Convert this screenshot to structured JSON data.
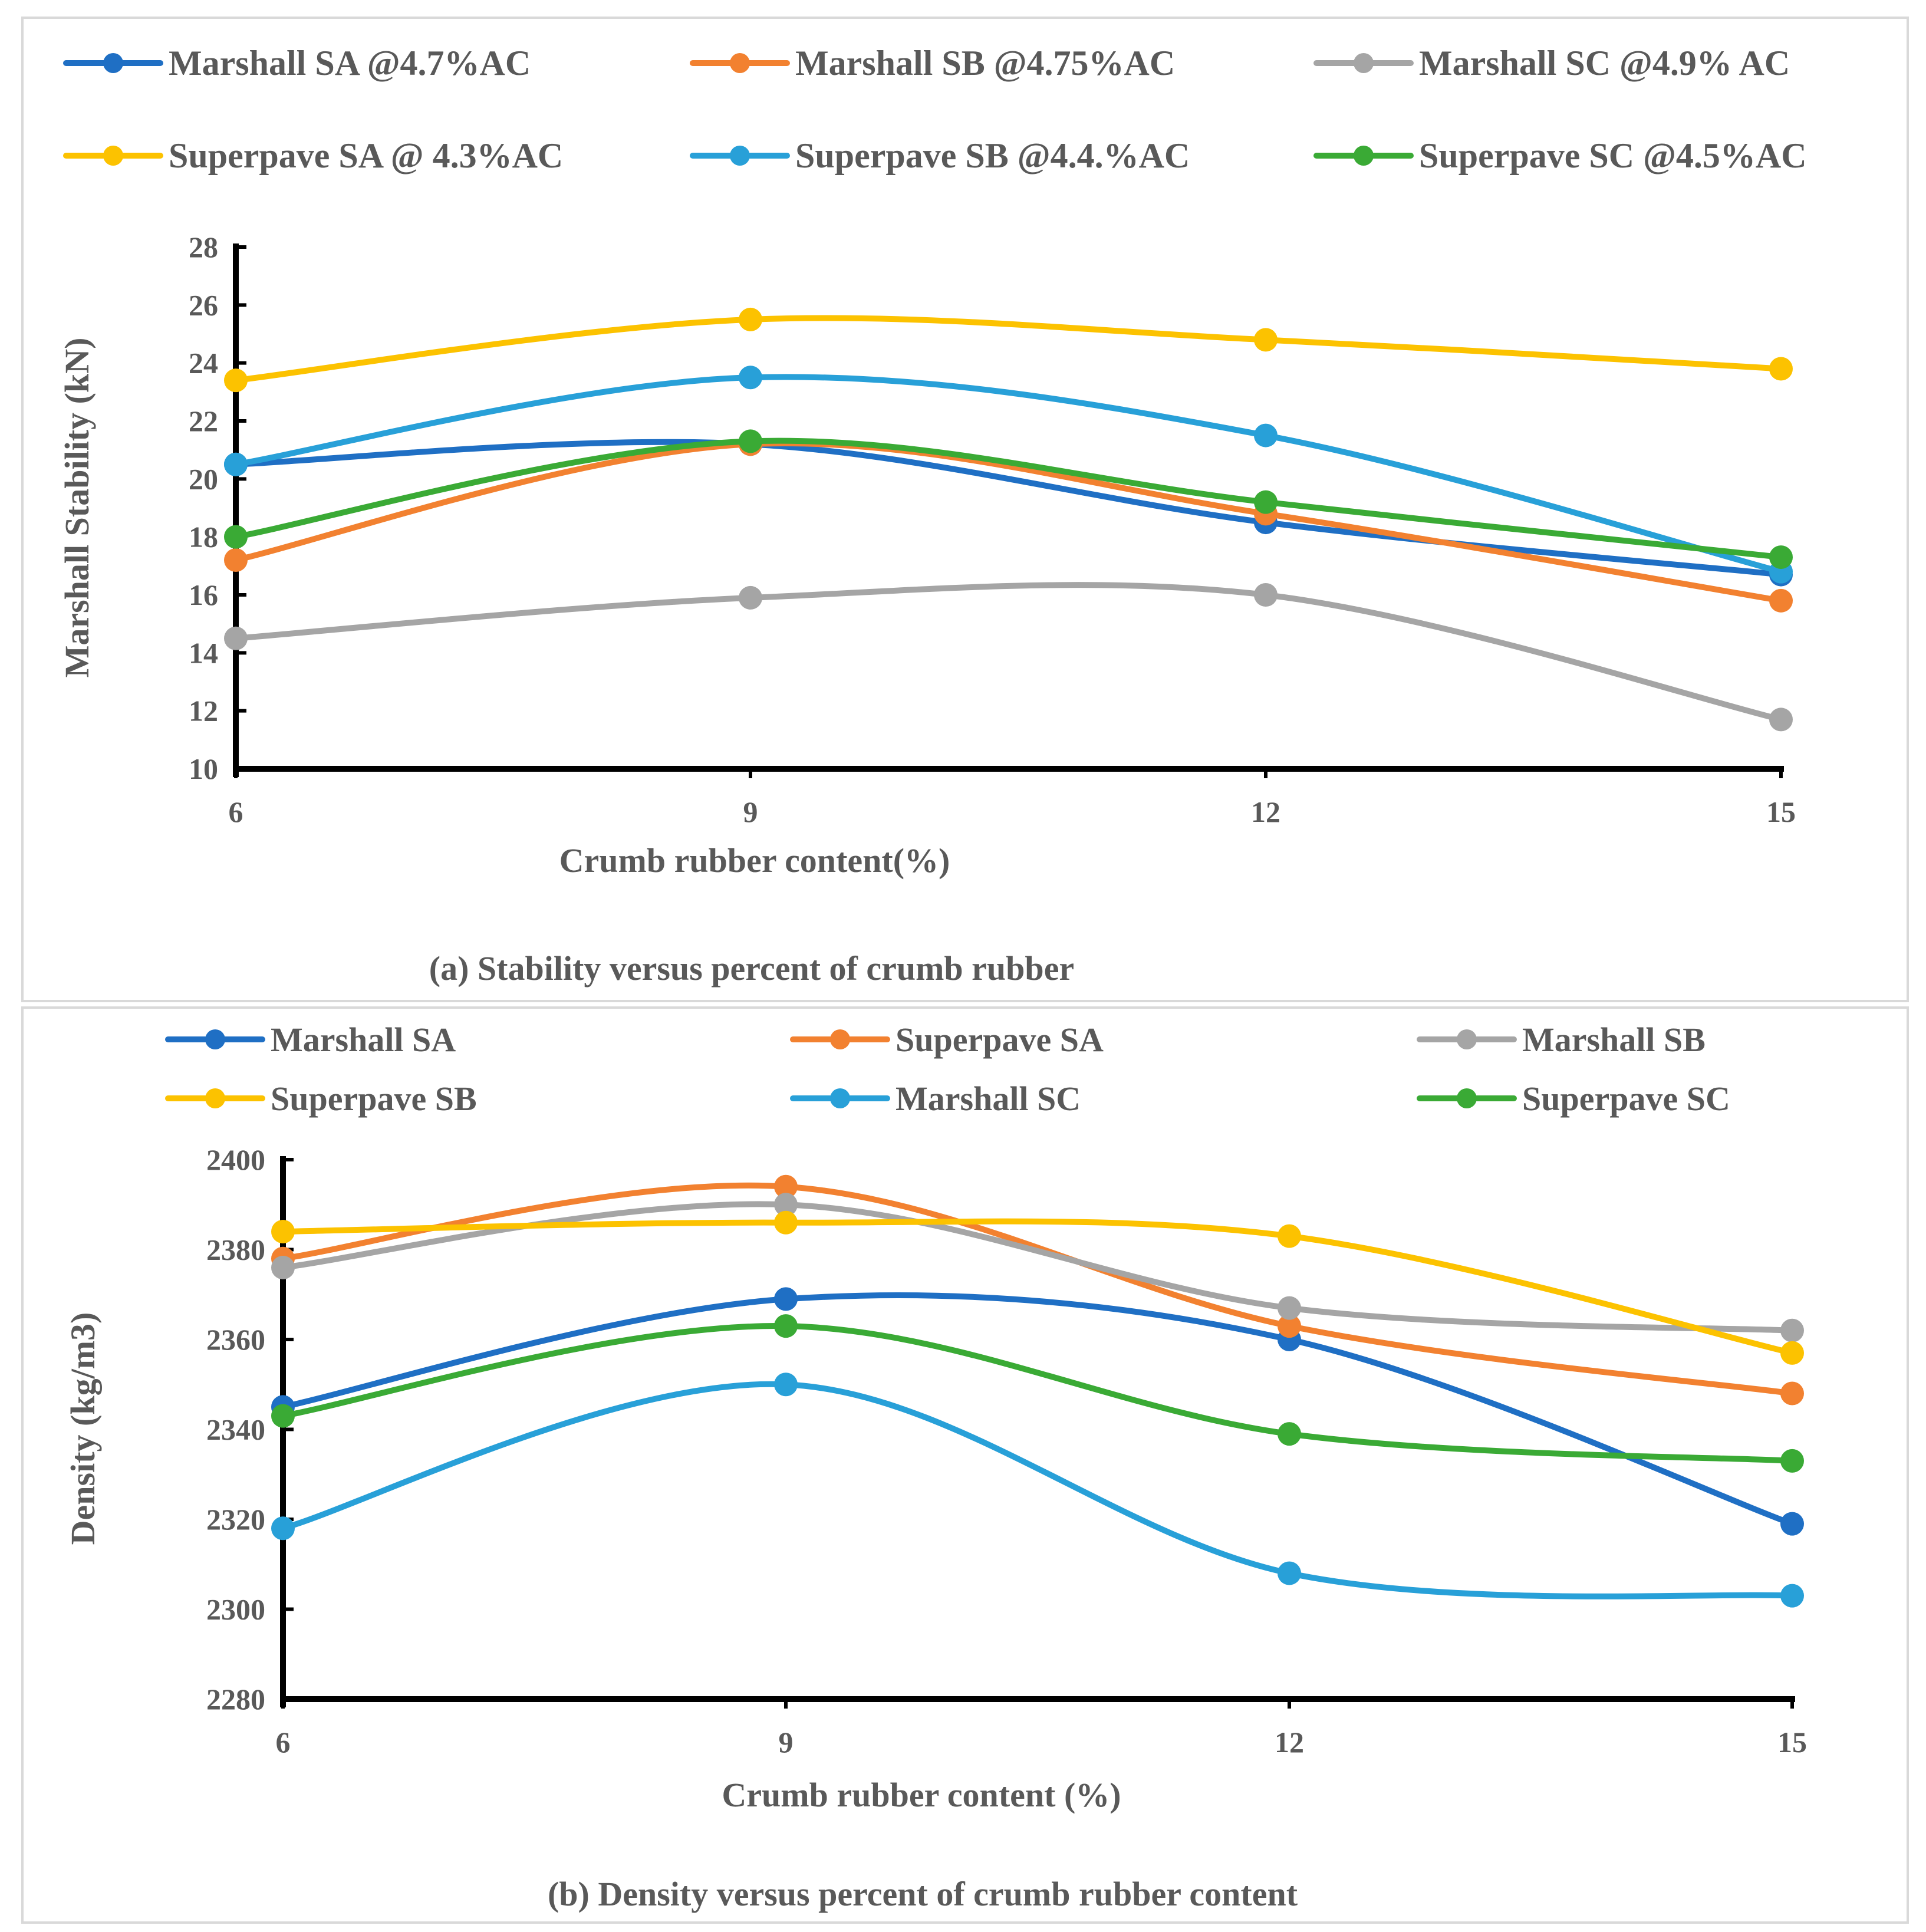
{
  "chart_data": [
    {
      "type": "line",
      "caption": "(a) Stability versus percent of crumb rubber",
      "xlabel": "Crumb rubber content(%)",
      "ylabel": "Marshall Stability (kN)",
      "categories": [
        "6",
        "9",
        "12",
        "15"
      ],
      "x": [
        6,
        9,
        12,
        15
      ],
      "ylim": [
        10,
        28
      ],
      "yticks": [
        10,
        12,
        14,
        16,
        18,
        20,
        22,
        24,
        26,
        28
      ],
      "grid": false,
      "legend_position": "top",
      "series": [
        {
          "name": "Marshall SA @4.7%AC",
          "color": "#1f6fc4",
          "values": [
            20.5,
            21.2,
            18.5,
            16.7
          ]
        },
        {
          "name": "Marshall SB @4.75%AC",
          "color": "#f28130",
          "values": [
            17.2,
            21.2,
            18.8,
            15.8
          ]
        },
        {
          "name": "Marshall SC @4.9% AC",
          "color": "#a5a5a5",
          "values": [
            14.5,
            15.9,
            16.0,
            11.7
          ]
        },
        {
          "name": "Superpave SA @ 4.3%AC",
          "color": "#fcc200",
          "values": [
            23.4,
            25.5,
            24.8,
            23.8
          ]
        },
        {
          "name": "Superpave SB @4.4.%AC",
          "color": "#28a0d8",
          "values": [
            20.5,
            23.5,
            21.5,
            16.8
          ]
        },
        {
          "name": "Superpave SC @4.5%AC",
          "color": "#3aaa35",
          "values": [
            18.0,
            21.3,
            19.2,
            17.3
          ]
        }
      ]
    },
    {
      "type": "line",
      "caption": "(b) Density versus percent of crumb rubber content",
      "xlabel": "Crumb rubber content (%)",
      "ylabel": "Density (kg/m3)",
      "categories": [
        "6",
        "9",
        "12",
        "15"
      ],
      "x": [
        6,
        9,
        12,
        15
      ],
      "ylim": [
        2280,
        2400
      ],
      "yticks": [
        2280,
        2300,
        2320,
        2340,
        2360,
        2380,
        2400
      ],
      "grid": false,
      "legend_position": "top",
      "series": [
        {
          "name": "Marshall SA",
          "color": "#1f6fc4",
          "values": [
            2345,
            2369,
            2360,
            2319
          ]
        },
        {
          "name": "Superpave SA",
          "color": "#f28130",
          "values": [
            2378,
            2394,
            2363,
            2348
          ]
        },
        {
          "name": "Marshall SB",
          "color": "#a5a5a5",
          "values": [
            2376,
            2390,
            2367,
            2362
          ]
        },
        {
          "name": "Superpave SB",
          "color": "#fcc200",
          "values": [
            2384,
            2386,
            2383,
            2357
          ]
        },
        {
          "name": "Marshall SC",
          "color": "#28a0d8",
          "values": [
            2318,
            2350,
            2308,
            2303
          ]
        },
        {
          "name": "Superpave SC",
          "color": "#3aaa35",
          "values": [
            2343,
            2363,
            2339,
            2333
          ]
        }
      ]
    }
  ]
}
